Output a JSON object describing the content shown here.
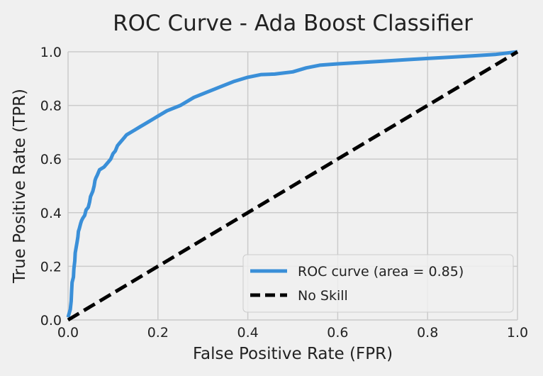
{
  "chart_data": {
    "type": "line",
    "title": "ROC Curve - Ada Boost Classifier",
    "xlabel": "False Positive Rate (FPR)",
    "ylabel": "True Positive Rate (TPR)",
    "xlim": [
      0.0,
      1.0
    ],
    "ylim": [
      0.0,
      1.0
    ],
    "x_ticks": [
      "0.0",
      "0.2",
      "0.4",
      "0.6",
      "0.8",
      "1.0"
    ],
    "y_ticks": [
      "0.0",
      "0.2",
      "0.4",
      "0.6",
      "0.8",
      "1.0"
    ],
    "grid": true,
    "legend_position": "bottom-right",
    "series": [
      {
        "name": "ROC curve (area = 0.85)",
        "color": "#3a8fd8",
        "style": "solid",
        "x": [
          0.0,
          0.005,
          0.007,
          0.008,
          0.009,
          0.012,
          0.013,
          0.015,
          0.016,
          0.018,
          0.02,
          0.022,
          0.023,
          0.025,
          0.028,
          0.03,
          0.033,
          0.037,
          0.04,
          0.045,
          0.048,
          0.05,
          0.055,
          0.058,
          0.06,
          0.062,
          0.065,
          0.07,
          0.08,
          0.09,
          0.095,
          0.1,
          0.105,
          0.11,
          0.115,
          0.125,
          0.13,
          0.14,
          0.15,
          0.16,
          0.17,
          0.18,
          0.19,
          0.2,
          0.22,
          0.25,
          0.28,
          0.31,
          0.34,
          0.37,
          0.4,
          0.43,
          0.46,
          0.5,
          0.53,
          0.56,
          0.6,
          0.65,
          0.7,
          0.75,
          0.8,
          0.85,
          0.9,
          0.95,
          1.0
        ],
        "y": [
          0.01,
          0.04,
          0.07,
          0.11,
          0.14,
          0.16,
          0.19,
          0.22,
          0.25,
          0.27,
          0.29,
          0.31,
          0.33,
          0.34,
          0.36,
          0.37,
          0.38,
          0.39,
          0.41,
          0.42,
          0.44,
          0.46,
          0.48,
          0.5,
          0.52,
          0.53,
          0.54,
          0.56,
          0.57,
          0.59,
          0.6,
          0.62,
          0.63,
          0.65,
          0.66,
          0.68,
          0.69,
          0.7,
          0.71,
          0.72,
          0.73,
          0.74,
          0.75,
          0.76,
          0.78,
          0.8,
          0.83,
          0.85,
          0.87,
          0.89,
          0.905,
          0.915,
          0.917,
          0.925,
          0.94,
          0.95,
          0.955,
          0.96,
          0.965,
          0.97,
          0.975,
          0.98,
          0.985,
          0.99,
          1.0
        ]
      },
      {
        "name": "No Skill",
        "color": "#000000",
        "style": "dashed",
        "x": [
          0.0,
          1.0
        ],
        "y": [
          0.0,
          1.0
        ]
      }
    ]
  }
}
